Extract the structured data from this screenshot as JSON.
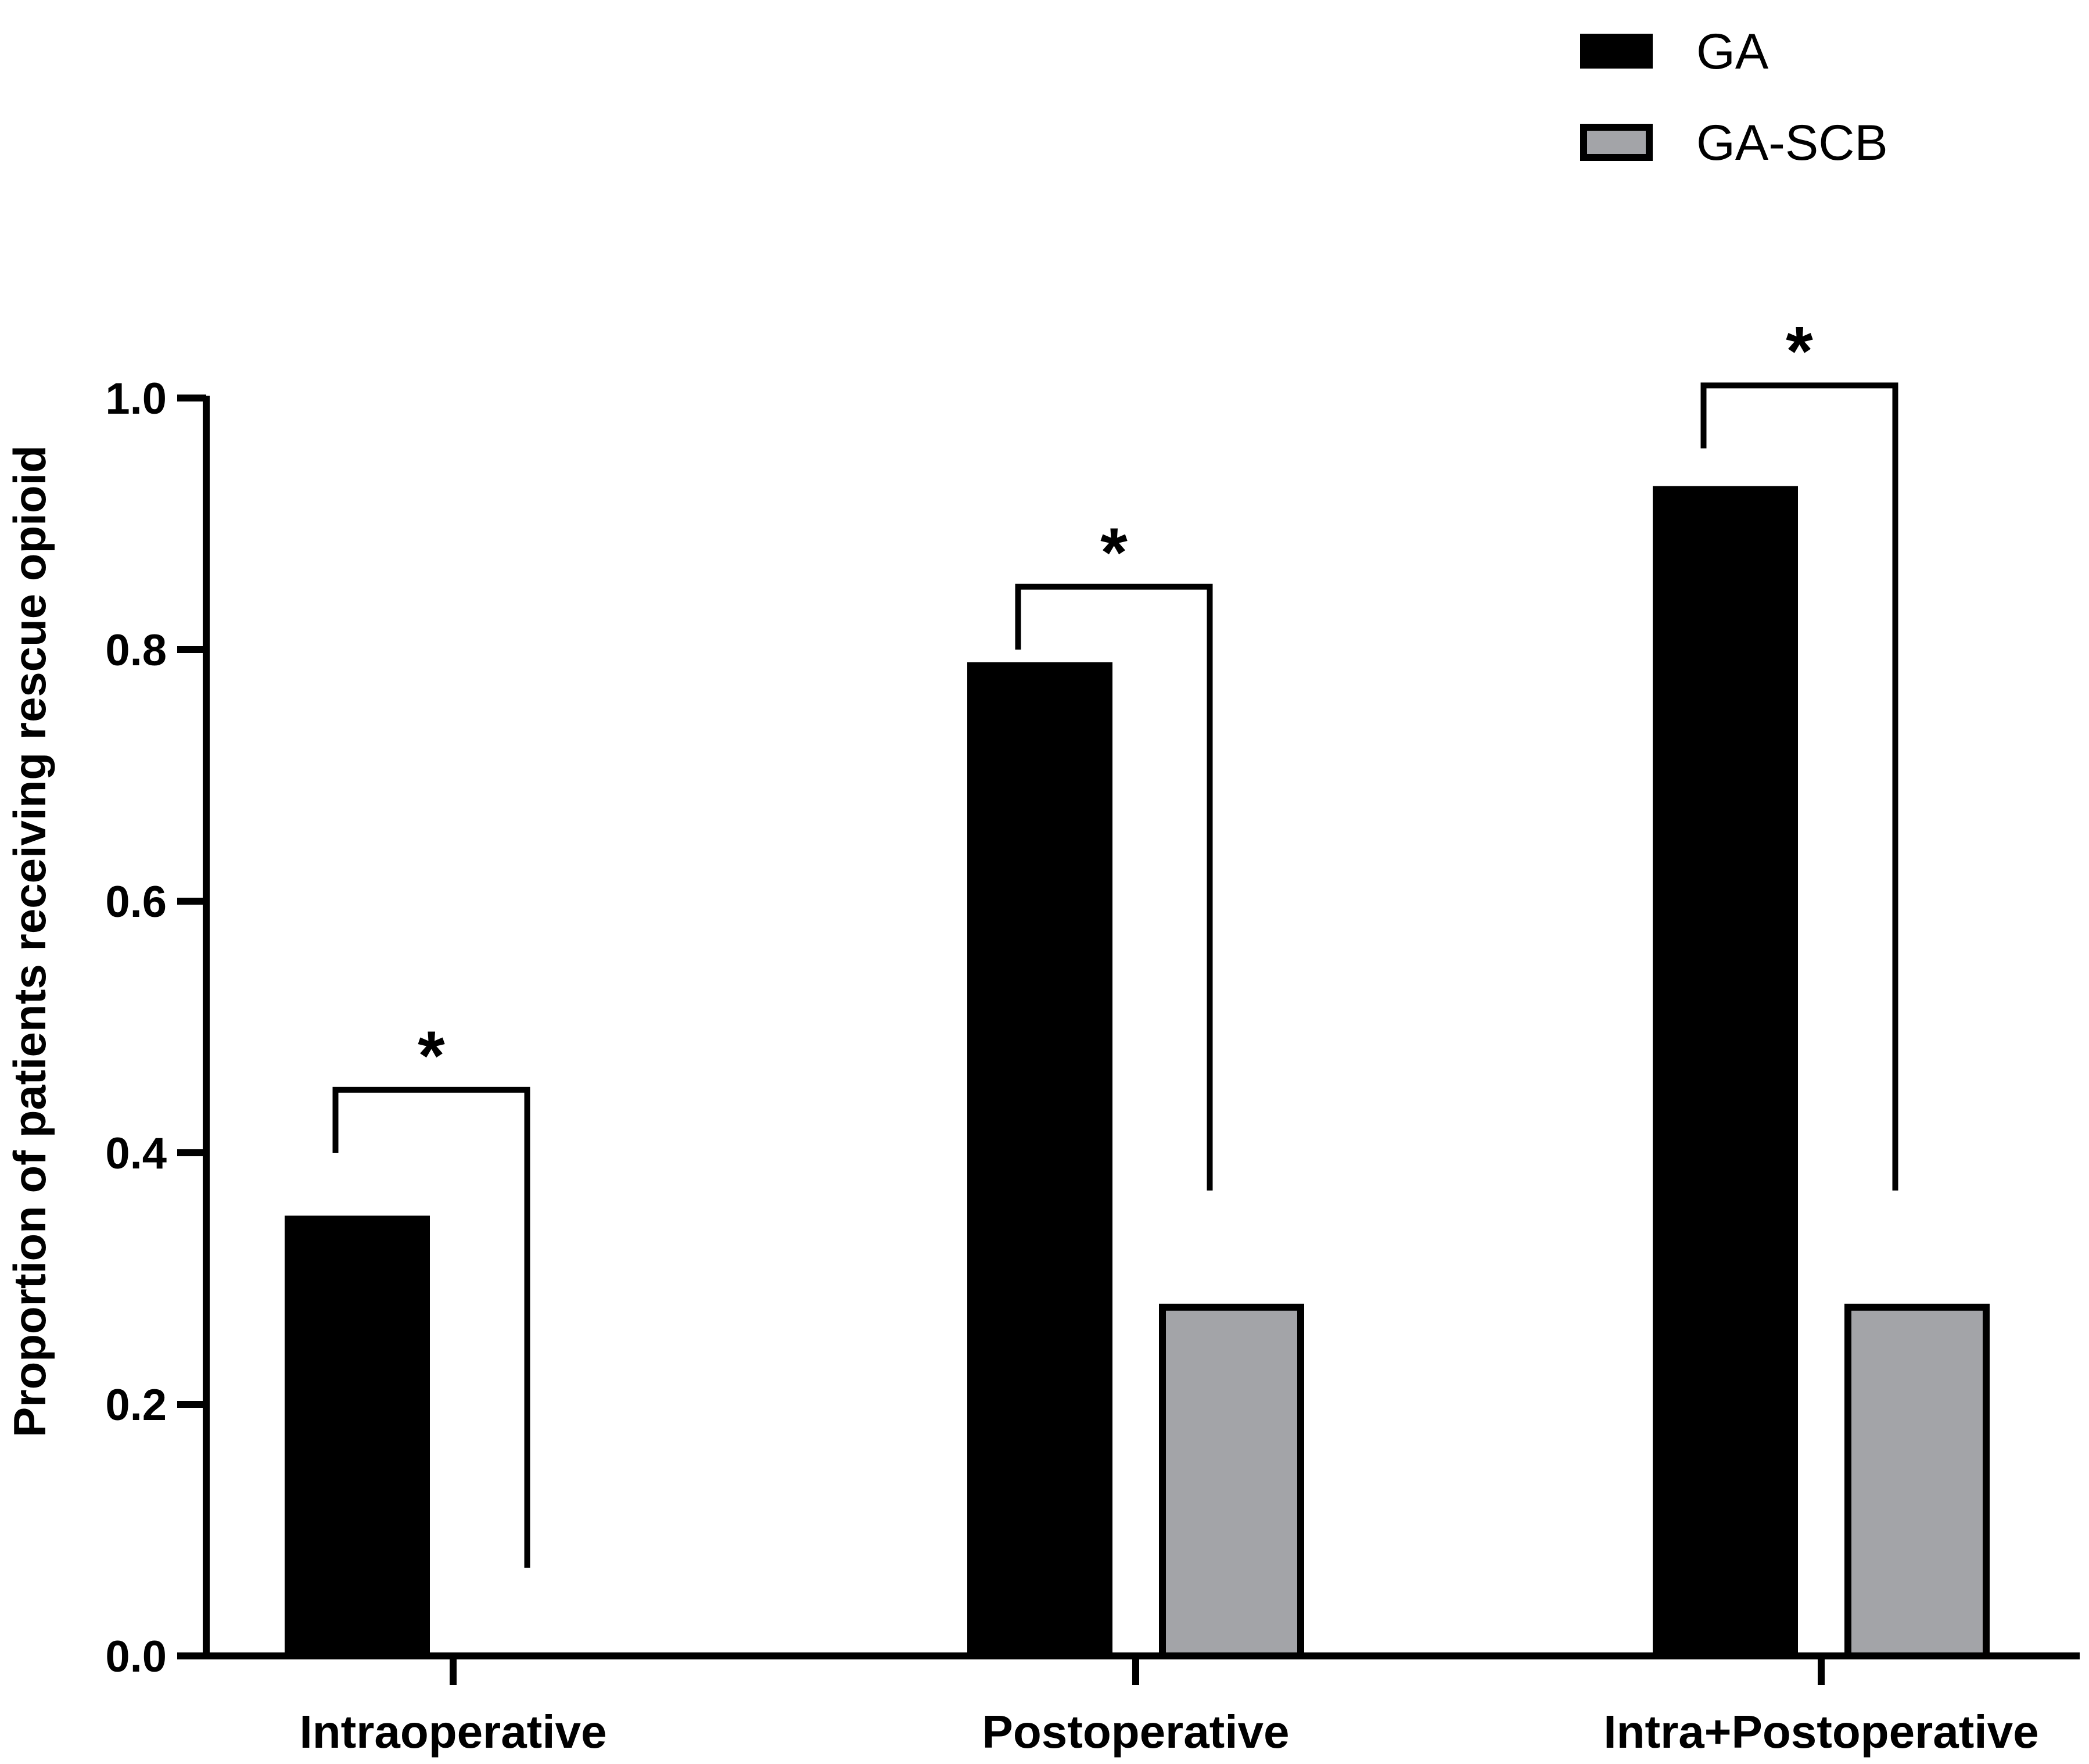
{
  "chart_data": {
    "type": "bar",
    "title": "",
    "xlabel": "",
    "ylabel": "Proportion of patients receiving rescue opioid",
    "ylim": [
      0,
      1.0
    ],
    "yticks": [
      "0.0",
      "0.2",
      "0.4",
      "0.6",
      "0.8",
      "1.0"
    ],
    "categories": [
      "Intraoperative",
      "Postoperative",
      "Intra+Postoperative"
    ],
    "series": [
      {
        "name": "GA",
        "color": "#000000",
        "values": [
          0.35,
          0.79,
          0.93
        ]
      },
      {
        "name": "GA-SCB",
        "color": "#a3a4a8",
        "values": [
          0.0,
          0.28,
          0.28
        ]
      }
    ],
    "legend": {
      "position": "top-right",
      "entries": [
        "GA",
        "GA-SCB"
      ]
    },
    "significance": [
      {
        "category": "Intraoperative",
        "label": "*",
        "bracket_y": 0.45,
        "left_end": 0.4,
        "right_end": 0.07
      },
      {
        "category": "Postoperative",
        "label": "*",
        "bracket_y": 0.85,
        "left_end": 0.8,
        "right_end": 0.37
      },
      {
        "category": "Intra+Postoperative",
        "label": "*",
        "bracket_y": 1.01,
        "left_end": 0.96,
        "right_end": 0.37
      }
    ],
    "grid": false
  }
}
